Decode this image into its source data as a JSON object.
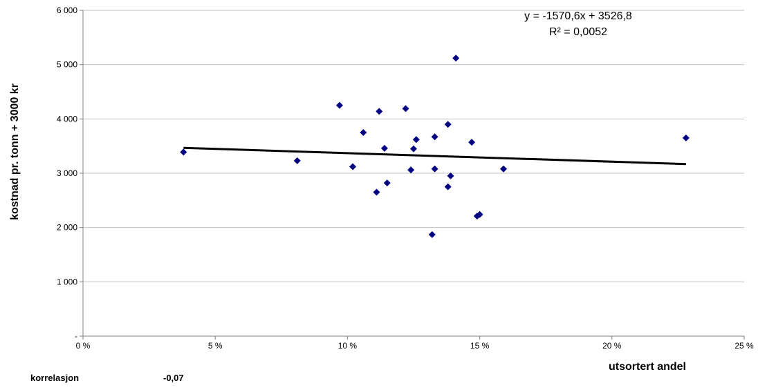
{
  "chart_data": {
    "type": "scatter",
    "xlabel": "utsortert andel",
    "ylabel": "kostnad pr. tonn + 3000 kr",
    "xlim": [
      0,
      0.25
    ],
    "ylim": [
      0,
      6000
    ],
    "x_ticks": [
      {
        "value": 0,
        "label": "0 %"
      },
      {
        "value": 0.05,
        "label": "5 %"
      },
      {
        "value": 0.1,
        "label": "10 %"
      },
      {
        "value": 0.15,
        "label": "15 %"
      },
      {
        "value": 0.2,
        "label": "20 %"
      },
      {
        "value": 0.25,
        "label": "25 %"
      }
    ],
    "y_ticks": [
      {
        "value": 0,
        "label": "-"
      },
      {
        "value": 1000,
        "label": "1 000"
      },
      {
        "value": 2000,
        "label": "2 000"
      },
      {
        "value": 3000,
        "label": "3 000"
      },
      {
        "value": 4000,
        "label": "4 000"
      },
      {
        "value": 5000,
        "label": "5 000"
      },
      {
        "value": 6000,
        "label": "6 000"
      }
    ],
    "grid": true,
    "points": [
      {
        "x": 0.038,
        "y": 3390
      },
      {
        "x": 0.081,
        "y": 3230
      },
      {
        "x": 0.097,
        "y": 4250
      },
      {
        "x": 0.102,
        "y": 3120
      },
      {
        "x": 0.106,
        "y": 3750
      },
      {
        "x": 0.111,
        "y": 2650
      },
      {
        "x": 0.112,
        "y": 4140
      },
      {
        "x": 0.114,
        "y": 3460
      },
      {
        "x": 0.115,
        "y": 2820
      },
      {
        "x": 0.122,
        "y": 4190
      },
      {
        "x": 0.124,
        "y": 3060
      },
      {
        "x": 0.125,
        "y": 3450
      },
      {
        "x": 0.126,
        "y": 3620
      },
      {
        "x": 0.132,
        "y": 1870
      },
      {
        "x": 0.133,
        "y": 3670
      },
      {
        "x": 0.133,
        "y": 3080
      },
      {
        "x": 0.138,
        "y": 3900
      },
      {
        "x": 0.138,
        "y": 2750
      },
      {
        "x": 0.139,
        "y": 2950
      },
      {
        "x": 0.141,
        "y": 5120
      },
      {
        "x": 0.147,
        "y": 3570
      },
      {
        "x": 0.149,
        "y": 2210
      },
      {
        "x": 0.15,
        "y": 2240
      },
      {
        "x": 0.159,
        "y": 3080
      },
      {
        "x": 0.228,
        "y": 3650
      }
    ],
    "marker_color": "#000080",
    "trendline": {
      "type": "linear",
      "slope": -1570.6,
      "intercept": 3526.8,
      "x_range": [
        0.038,
        0.228
      ],
      "color": "#000000",
      "equation": "y = -1570,6x + 3526,8",
      "r_squared": "R² = 0,0052"
    }
  },
  "footer": {
    "label": "korrelasjon",
    "value": "-0,07"
  }
}
